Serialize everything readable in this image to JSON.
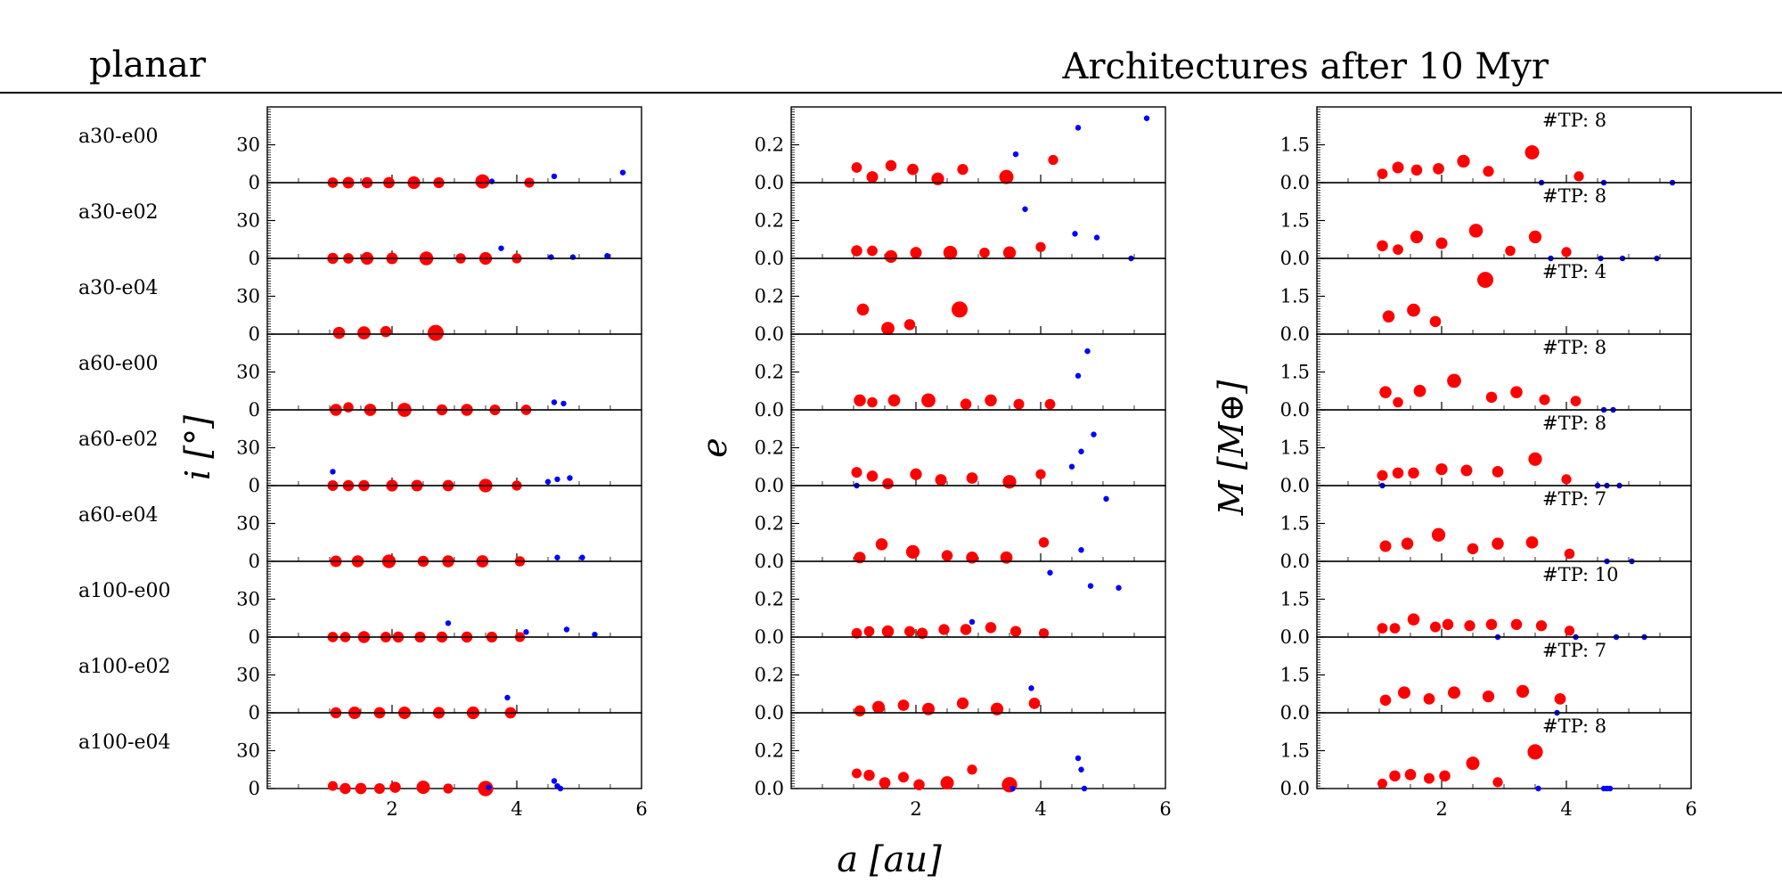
{
  "header": {
    "left_title": "planar",
    "right_title": "Architectures after 10 Myr"
  },
  "chart_data": {
    "type": "scatter",
    "xlabel": "a [au]",
    "xlim": [
      0,
      6
    ],
    "xticks": [
      2,
      4,
      6
    ],
    "columns": [
      {
        "key": "i",
        "ylabel": "i [°]",
        "ylim": [
          0,
          60
        ],
        "yticks": [
          0,
          30
        ],
        "ytick_labels": [
          "0",
          "30"
        ]
      },
      {
        "key": "e",
        "ylabel": "e",
        "ylim": [
          0,
          0.4
        ],
        "yticks": [
          0.0,
          0.2
        ],
        "ytick_labels": [
          "0.0",
          "0.2"
        ]
      },
      {
        "key": "M",
        "ylabel": "M [M⊕]",
        "ylim": [
          0,
          3
        ],
        "yticks": [
          0.0,
          1.5
        ],
        "ytick_labels": [
          "0.0",
          "1.5"
        ]
      }
    ],
    "legend": "",
    "colors": {
      "planet": "#ff0000",
      "test_particle": "#0000ff"
    },
    "rows": [
      {
        "label": "a30-e00",
        "tp_label": "#TP: 8",
        "planets": [
          {
            "a": 1.05,
            "i": 0,
            "e": 0.08,
            "M": 0.35
          },
          {
            "a": 1.3,
            "i": 0,
            "e": 0.03,
            "M": 0.6
          },
          {
            "a": 1.6,
            "i": 0,
            "e": 0.09,
            "M": 0.5
          },
          {
            "a": 1.95,
            "i": 0,
            "e": 0.07,
            "M": 0.55
          },
          {
            "a": 2.35,
            "i": 0,
            "e": 0.02,
            "M": 0.85
          },
          {
            "a": 2.75,
            "i": 0,
            "e": 0.07,
            "M": 0.45
          },
          {
            "a": 3.45,
            "i": 1,
            "e": 0.03,
            "M": 1.2
          },
          {
            "a": 4.2,
            "i": 0,
            "e": 0.12,
            "M": 0.25
          }
        ],
        "tps": [
          {
            "a": 3.6,
            "i": 1,
            "e": 0.15,
            "M": 0
          },
          {
            "a": 4.6,
            "i": 5,
            "e": 0.29,
            "M": 0
          },
          {
            "a": 5.7,
            "i": 8,
            "e": 0.34,
            "M": 0
          }
        ]
      },
      {
        "label": "a30-e02",
        "tp_label": "#TP: 8",
        "planets": [
          {
            "a": 1.05,
            "i": 0,
            "e": 0.04,
            "M": 0.5
          },
          {
            "a": 1.3,
            "i": 0,
            "e": 0.04,
            "M": 0.35
          },
          {
            "a": 1.6,
            "i": 0,
            "e": 0.01,
            "M": 0.85
          },
          {
            "a": 2.0,
            "i": 0,
            "e": 0.03,
            "M": 0.6
          },
          {
            "a": 2.55,
            "i": 0,
            "e": 0.03,
            "M": 1.1
          },
          {
            "a": 3.1,
            "i": 0,
            "e": 0.03,
            "M": 0.3
          },
          {
            "a": 3.5,
            "i": 0,
            "e": 0.03,
            "M": 0.85
          },
          {
            "a": 4.0,
            "i": 0,
            "e": 0.06,
            "M": 0.25
          }
        ],
        "tps": [
          {
            "a": 3.75,
            "i": 8,
            "e": 0.26,
            "M": 0
          },
          {
            "a": 4.55,
            "i": 1,
            "e": 0.13,
            "M": 0
          },
          {
            "a": 4.9,
            "i": 1,
            "e": 0.11,
            "M": 0
          },
          {
            "a": 5.45,
            "i": 2,
            "e": 0,
            "M": 0
          }
        ]
      },
      {
        "label": "a30-e04",
        "tp_label": "#TP: 4",
        "planets": [
          {
            "a": 1.15,
            "i": 1,
            "e": 0.13,
            "M": 0.7
          },
          {
            "a": 1.55,
            "i": 1,
            "e": 0.03,
            "M": 0.95
          },
          {
            "a": 1.9,
            "i": 2,
            "e": 0.05,
            "M": 0.5
          },
          {
            "a": 2.7,
            "i": 1,
            "e": 0.13,
            "M": 2.15
          }
        ],
        "tps": []
      },
      {
        "label": "a60-e00",
        "tp_label": "#TP: 8",
        "planets": [
          {
            "a": 1.1,
            "i": 0,
            "e": 0.05,
            "M": 0.7
          },
          {
            "a": 1.3,
            "i": 2,
            "e": 0.04,
            "M": 0.3
          },
          {
            "a": 1.65,
            "i": 0,
            "e": 0.05,
            "M": 0.75
          },
          {
            "a": 2.2,
            "i": 0,
            "e": 0.05,
            "M": 1.15
          },
          {
            "a": 2.8,
            "i": 0,
            "e": 0.03,
            "M": 0.5
          },
          {
            "a": 3.2,
            "i": 0,
            "e": 0.05,
            "M": 0.7
          },
          {
            "a": 3.65,
            "i": 0,
            "e": 0.03,
            "M": 0.4
          },
          {
            "a": 4.15,
            "i": 0,
            "e": 0.03,
            "M": 0.35
          }
        ],
        "tps": [
          {
            "a": 4.6,
            "i": 6,
            "e": 0.18,
            "M": 0
          },
          {
            "a": 4.75,
            "i": 5,
            "e": 0.31,
            "M": 0
          }
        ]
      },
      {
        "label": "a60-e02",
        "tp_label": "#TP: 8",
        "planets": [
          {
            "a": 1.05,
            "i": 0,
            "e": 0.07,
            "M": 0.4
          },
          {
            "a": 1.3,
            "i": 0,
            "e": 0.05,
            "M": 0.5
          },
          {
            "a": 1.55,
            "i": 0,
            "e": 0.01,
            "M": 0.5
          },
          {
            "a": 2.0,
            "i": 0,
            "e": 0.06,
            "M": 0.65
          },
          {
            "a": 2.4,
            "i": 0,
            "e": 0.03,
            "M": 0.6
          },
          {
            "a": 2.9,
            "i": 0,
            "e": 0.04,
            "M": 0.55
          },
          {
            "a": 3.5,
            "i": 0,
            "e": 0.02,
            "M": 1.05
          },
          {
            "a": 4.0,
            "i": 0,
            "e": 0.06,
            "M": 0.25
          }
        ],
        "tps": [
          {
            "a": 1.05,
            "i": 11,
            "e": 0,
            "M": 0
          },
          {
            "a": 4.5,
            "i": 3,
            "e": 0.1,
            "M": 0
          },
          {
            "a": 4.65,
            "i": 5,
            "e": 0.18,
            "M": 0
          },
          {
            "a": 4.85,
            "i": 6,
            "e": 0.27,
            "M": 0
          }
        ]
      },
      {
        "label": "a60-e04",
        "tp_label": "#TP: 7",
        "planets": [
          {
            "a": 1.1,
            "i": 0,
            "e": 0.02,
            "M": 0.6
          },
          {
            "a": 1.45,
            "i": 0,
            "e": 0.09,
            "M": 0.7
          },
          {
            "a": 1.95,
            "i": 0,
            "e": 0.05,
            "M": 1.05
          },
          {
            "a": 2.5,
            "i": 0,
            "e": 0.03,
            "M": 0.5
          },
          {
            "a": 2.9,
            "i": 0,
            "e": 0.02,
            "M": 0.7
          },
          {
            "a": 3.45,
            "i": 0,
            "e": 0.02,
            "M": 0.75
          },
          {
            "a": 4.05,
            "i": 0,
            "e": 0.1,
            "M": 0.3
          }
        ],
        "tps": [
          {
            "a": 4.65,
            "i": 3,
            "e": 0.06,
            "M": 0
          },
          {
            "a": 5.05,
            "i": 3,
            "e": 0.33,
            "M": 0
          }
        ]
      },
      {
        "label": "a100-e00",
        "tp_label": "#TP: 10",
        "planets": [
          {
            "a": 1.05,
            "i": 0,
            "e": 0.02,
            "M": 0.35
          },
          {
            "a": 1.25,
            "i": 0,
            "e": 0.03,
            "M": 0.35
          },
          {
            "a": 1.55,
            "i": 0,
            "e": 0.03,
            "M": 0.7
          },
          {
            "a": 1.9,
            "i": 0,
            "e": 0.03,
            "M": 0.4
          },
          {
            "a": 2.1,
            "i": 0,
            "e": 0.02,
            "M": 0.5
          },
          {
            "a": 2.45,
            "i": 0,
            "e": 0.04,
            "M": 0.45
          },
          {
            "a": 2.8,
            "i": 0,
            "e": 0.04,
            "M": 0.5
          },
          {
            "a": 3.2,
            "i": 0,
            "e": 0.05,
            "M": 0.5
          },
          {
            "a": 3.6,
            "i": 0,
            "e": 0.03,
            "M": 0.45
          },
          {
            "a": 4.05,
            "i": 0,
            "e": 0.02,
            "M": 0.25
          }
        ],
        "tps": [
          {
            "a": 2.9,
            "i": 11,
            "e": 0.08,
            "M": 0
          },
          {
            "a": 4.15,
            "i": 4,
            "e": 0.34,
            "M": 0
          },
          {
            "a": 4.8,
            "i": 6,
            "e": 0.27,
            "M": 0
          },
          {
            "a": 5.25,
            "i": 2,
            "e": 0.26,
            "M": 0
          }
        ]
      },
      {
        "label": "a100-e02",
        "tp_label": "#TP: 7",
        "planets": [
          {
            "a": 1.1,
            "i": 0,
            "e": 0.01,
            "M": 0.5
          },
          {
            "a": 1.4,
            "i": 0,
            "e": 0.03,
            "M": 0.8
          },
          {
            "a": 1.8,
            "i": 0,
            "e": 0.04,
            "M": 0.55
          },
          {
            "a": 2.2,
            "i": 0,
            "e": 0.02,
            "M": 0.8
          },
          {
            "a": 2.75,
            "i": 0,
            "e": 0.05,
            "M": 0.65
          },
          {
            "a": 3.3,
            "i": 0,
            "e": 0.02,
            "M": 0.85
          },
          {
            "a": 3.9,
            "i": 0,
            "e": 0.05,
            "M": 0.55
          }
        ],
        "tps": [
          {
            "a": 3.85,
            "i": 12,
            "e": 0.13,
            "M": 0
          }
        ]
      },
      {
        "label": "a100-e04",
        "tp_label": "#TP: 8",
        "planets": [
          {
            "a": 1.05,
            "i": 2,
            "e": 0.08,
            "M": 0.2
          },
          {
            "a": 1.25,
            "i": 0,
            "e": 0.07,
            "M": 0.5
          },
          {
            "a": 1.5,
            "i": 0,
            "e": 0.03,
            "M": 0.55
          },
          {
            "a": 1.8,
            "i": 0,
            "e": 0.06,
            "M": 0.4
          },
          {
            "a": 2.05,
            "i": 1,
            "e": 0.02,
            "M": 0.5
          },
          {
            "a": 2.5,
            "i": 1,
            "e": 0.03,
            "M": 1.0
          },
          {
            "a": 2.9,
            "i": 0,
            "e": 0.1,
            "M": 0.25
          },
          {
            "a": 3.5,
            "i": 0,
            "e": 0.02,
            "M": 1.45
          }
        ],
        "tps": [
          {
            "a": 3.55,
            "i": 1,
            "e": 0,
            "M": 0
          },
          {
            "a": 4.6,
            "i": 6,
            "e": 0.16,
            "M": 0
          },
          {
            "a": 4.65,
            "i": 2,
            "e": 0.1,
            "M": 0
          },
          {
            "a": 4.7,
            "i": 0,
            "e": 0,
            "M": 0
          }
        ]
      }
    ]
  }
}
